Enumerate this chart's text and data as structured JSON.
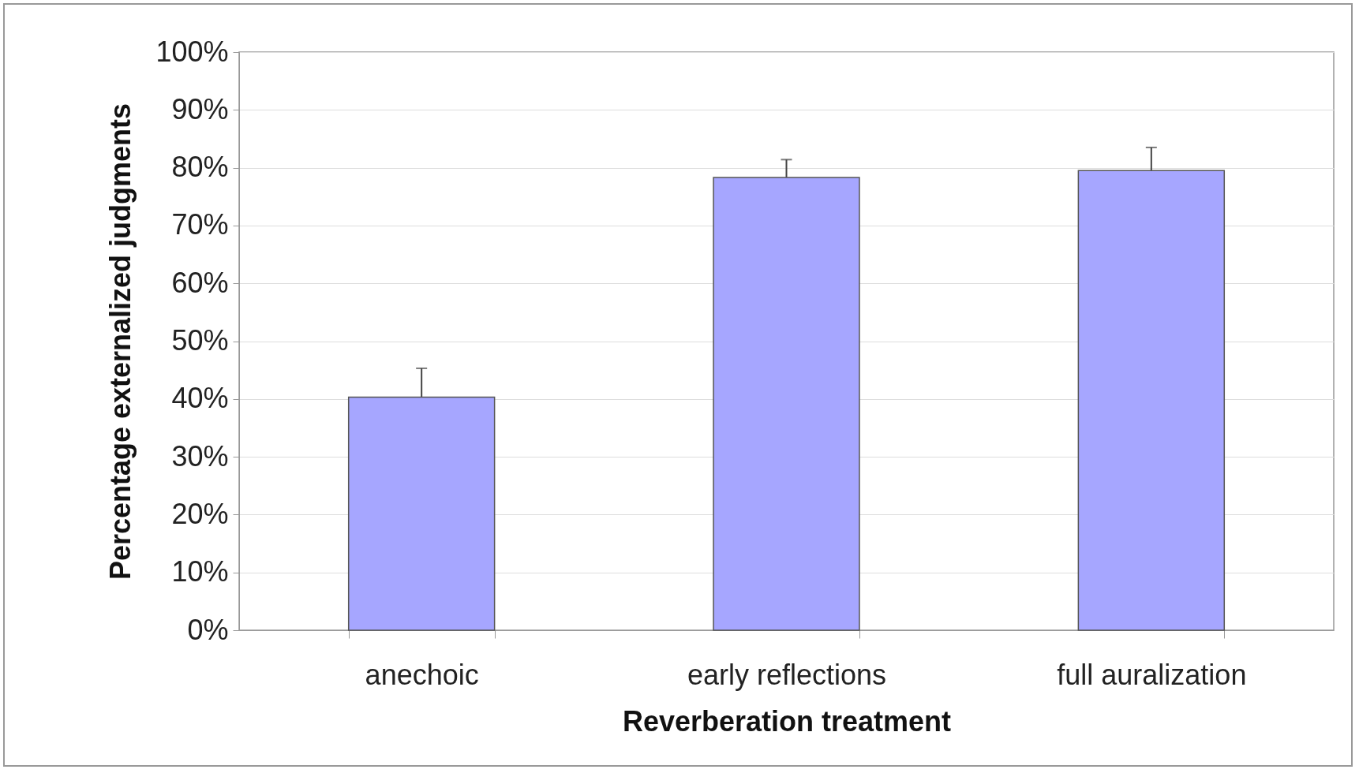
{
  "chart_data": {
    "type": "bar",
    "xlabel": "Reverberation treatment",
    "ylabel": "Percentage externalized judgments",
    "categories": [
      "anechoic",
      "early reflections",
      "full auralization"
    ],
    "values": [
      40.3,
      78.3,
      79.5
    ],
    "color": "#a6a6ff",
    "errors": [
      5,
      3.1,
      4
    ],
    "ylim": [
      0,
      100
    ],
    "yticks": [
      {
        "value": 0,
        "label": "0%"
      },
      {
        "value": 10,
        "label": "10%"
      },
      {
        "value": 20,
        "label": "20%"
      },
      {
        "value": 30,
        "label": "30%"
      },
      {
        "value": 40,
        "label": "40%"
      },
      {
        "value": 50,
        "label": "50%"
      },
      {
        "value": 60,
        "label": "60%"
      },
      {
        "value": 70,
        "label": "70%"
      },
      {
        "value": 80,
        "label": "80%"
      },
      {
        "value": 90,
        "label": "90%"
      },
      {
        "value": 100,
        "label": "100%"
      }
    ],
    "grid": "y"
  }
}
